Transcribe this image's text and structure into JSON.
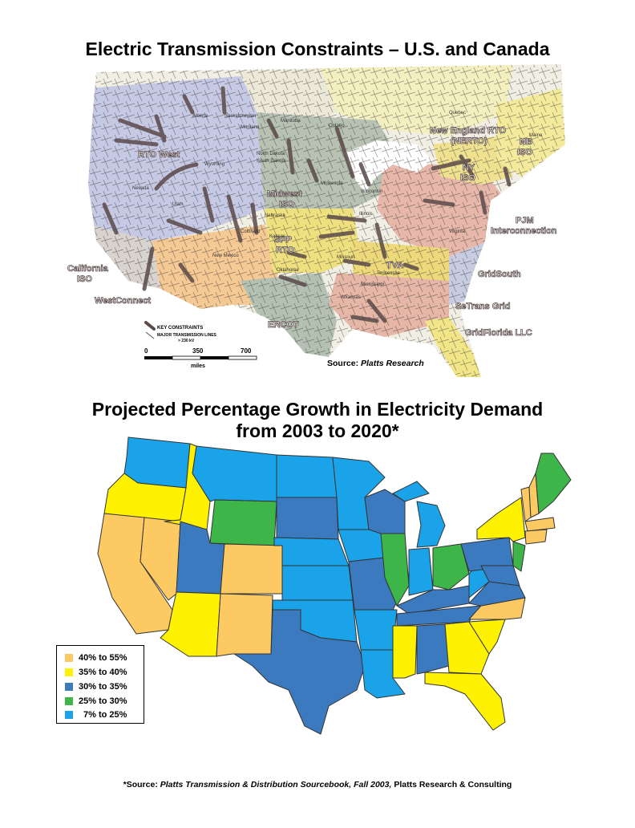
{
  "map1": {
    "title": "Electric Transmission Constraints – U.S. and Canada",
    "source_label": "Source:",
    "source_name": "Platts Research",
    "regions": [
      "RTO West",
      "California ISO",
      "WestConnect",
      "Midwest ISO",
      "SPP RTO",
      "ERCOT",
      "TVA",
      "PJM Interconnection",
      "GridSouth",
      "SeTrans Grid",
      "GridFlorida LLC",
      "New England RTO (NERTO)",
      "NY ISO",
      "NB ISO"
    ],
    "places": [
      "Alberta",
      "Saskatchewan",
      "Manitoba",
      "Ontario",
      "Quebec",
      "Montana",
      "North Dakota",
      "South Dakota",
      "Wyoming",
      "Nevada",
      "Utah",
      "Colorado",
      "Nebraska",
      "Kansas",
      "Oklahoma",
      "New Mexico",
      "Arkansas",
      "Mississippi",
      "Tennessee",
      "Virginia",
      "Missouri",
      "Illinois",
      "Wisconsin",
      "Minnesota",
      "Maine"
    ],
    "legend": {
      "key": "KEY CONSTRAINTS",
      "lines": "MAJOR TRANSMISSION LINES",
      "lines_sub": "> 230 kV"
    },
    "scale": {
      "ticks": [
        "0",
        "350",
        "700"
      ],
      "unit": "miles"
    }
  },
  "map2": {
    "title_line1": "Projected Percentage Growth in Electricity Demand",
    "title_line2": "from 2003 to 2020*",
    "legend": [
      {
        "label": "40% to 55%",
        "color": "#fcc963"
      },
      {
        "label": "35% to 40%",
        "color": "#fff200"
      },
      {
        "label": "30% to 35%",
        "color": "#3b7abf"
      },
      {
        "label": "25% to 30%",
        "color": "#3eb549"
      },
      {
        "label": "7% to 25%",
        "color": "#1aa3e8"
      }
    ]
  },
  "footer": {
    "prefix": "*Source:",
    "publication": "Platts Transmission & Distribution Sourcebook, Fall 2003,",
    "suffix": "Platts Research & Consulting"
  }
}
